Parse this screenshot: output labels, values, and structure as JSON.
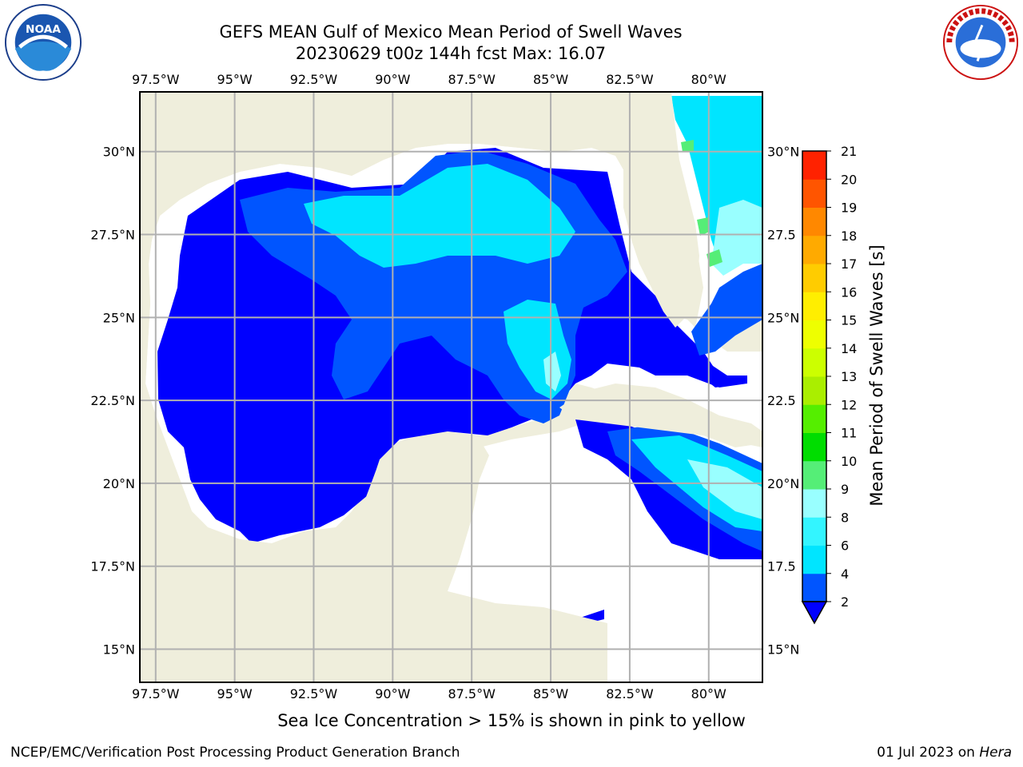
{
  "title": {
    "line1": "GEFS MEAN Gulf of Mexico Mean Period of Swell Waves",
    "line2": "20230629 t00z 144h fcst   Max: 16.07"
  },
  "logos": {
    "left": "noaa-logo",
    "right": "nws-logo"
  },
  "map": {
    "lon_ticks": [
      "97.5°W",
      "95°W",
      "92.5°W",
      "90°W",
      "87.5°W",
      "85°W",
      "82.5°W",
      "80°W"
    ],
    "lon_values": [
      -97.5,
      -95,
      -92.5,
      -90,
      -87.5,
      -85,
      -82.5,
      -80
    ],
    "lat_ticks_left": [
      "30°N",
      "27.5°N",
      "25°N",
      "22.5°N",
      "20°N",
      "17.5°N",
      "15°N"
    ],
    "lat_ticks_right": [
      "30°N",
      "27.5",
      "25°N",
      "22.5",
      "20°N",
      "17.5",
      "15°N"
    ],
    "lat_values": [
      30,
      27.5,
      25,
      22.5,
      20,
      17.5,
      15
    ],
    "extent": {
      "lon_min": -98,
      "lon_max": -78.3,
      "lat_min": 14.0,
      "lat_max": 31.8
    },
    "land_color": "#efeedc",
    "ocean_missing_color": "#ffffff",
    "grid_color": "#b0b0b0"
  },
  "colorbar": {
    "label": "Mean Period of Swell Waves [s]",
    "levels": [
      "2",
      "4",
      "6",
      "8",
      "9",
      "10",
      "11",
      "12",
      "13",
      "14",
      "15",
      "16",
      "17",
      "18",
      "19",
      "20",
      "21"
    ],
    "colors": [
      "#0055ff",
      "#00e5ff",
      "#33f5ff",
      "#99ffff",
      "#55ee77",
      "#00dd00",
      "#55ee00",
      "#aaee00",
      "#ccff00",
      "#eeff00",
      "#ffee00",
      "#ffcc00",
      "#ffaa00",
      "#ff8800",
      "#ff5500",
      "#ff2200"
    ],
    "under_color": "#0000ff"
  },
  "footer": {
    "note": "Sea Ice Concentration > 15% is shown in pink to yellow",
    "left": "NCEP/EMC/Verification Post Processing Product Generation Branch",
    "right_prefix": "01 Jul 2023 on ",
    "right_host": "Hera"
  }
}
